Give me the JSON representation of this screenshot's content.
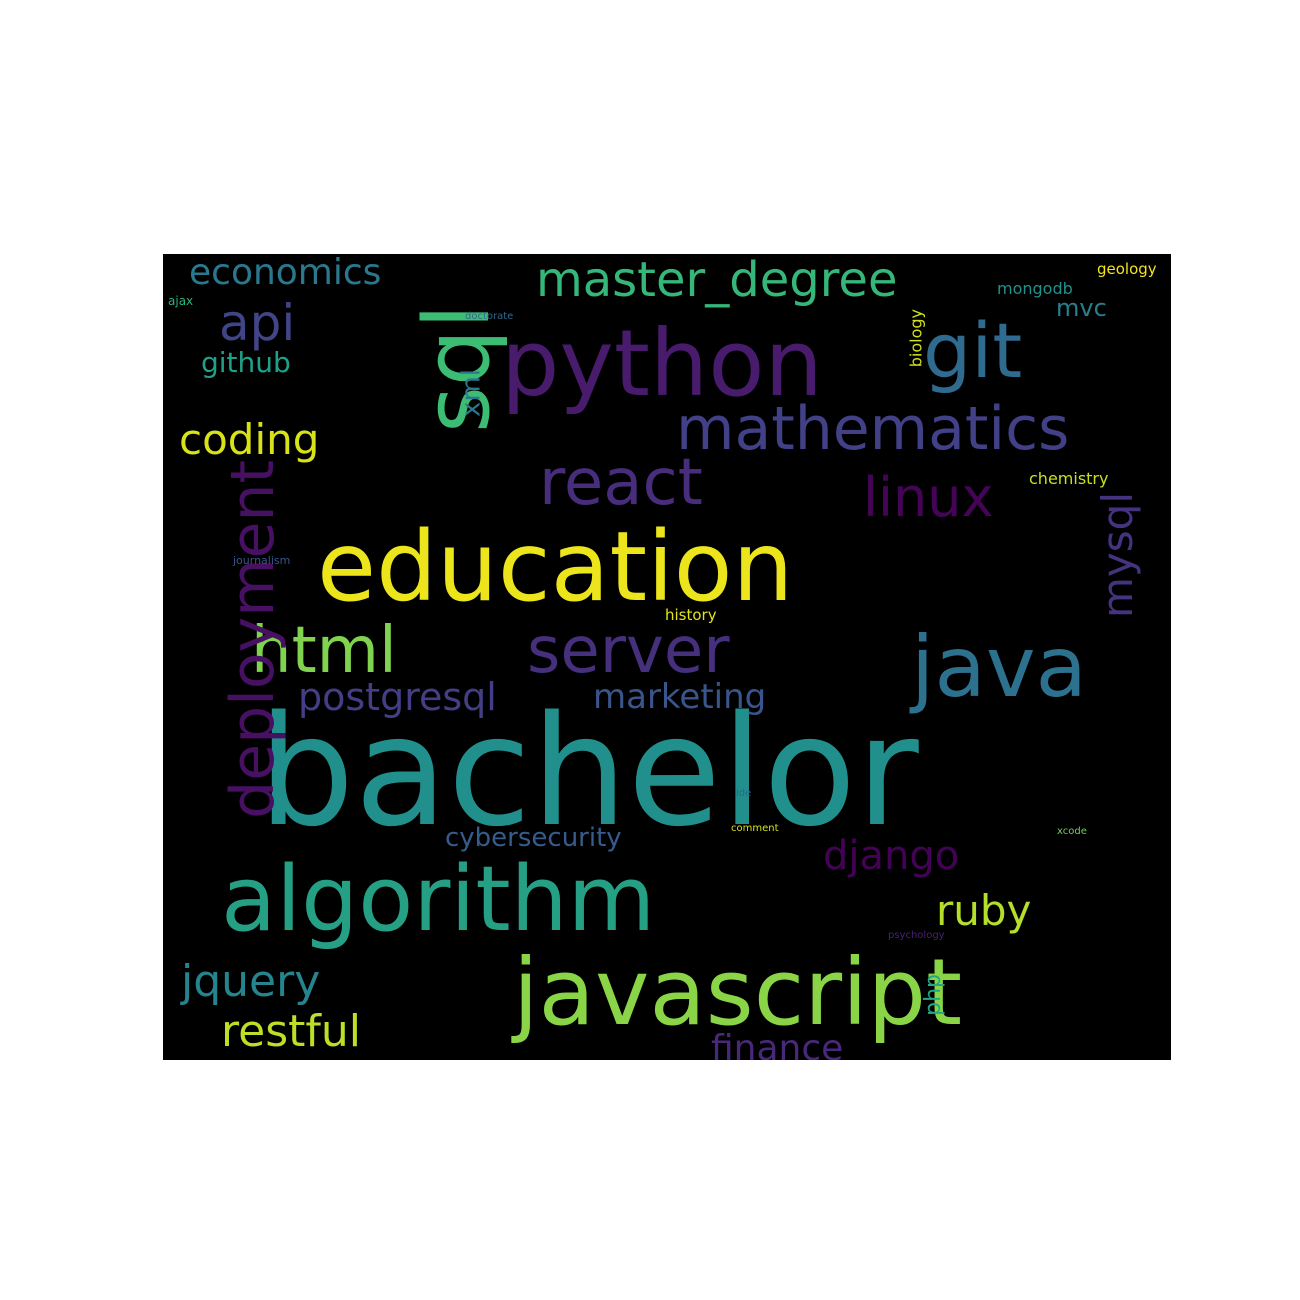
{
  "words": [
    {
      "text": "bachelor",
      "color": "#21908d"
    },
    {
      "text": "education",
      "color": "#ece51b"
    },
    {
      "text": "python",
      "color": "#481b6d"
    },
    {
      "text": "javascript",
      "color": "#8ad547"
    },
    {
      "text": "algorithm",
      "color": "#25a085"
    },
    {
      "text": "sql",
      "color": "#3dbc74"
    },
    {
      "text": "java",
      "color": "#2c718e"
    },
    {
      "text": "git",
      "color": "#2f6b8e"
    },
    {
      "text": "mathematics",
      "color": "#424086"
    },
    {
      "text": "react",
      "color": "#472d7b"
    },
    {
      "text": "server",
      "color": "#46307e"
    },
    {
      "text": "html",
      "color": "#7fd34e"
    },
    {
      "text": "deployment",
      "color": "#471063"
    },
    {
      "text": "master_degree",
      "color": "#35b779"
    },
    {
      "text": "coding",
      "color": "#d8e219"
    },
    {
      "text": "linux",
      "color": "#450457"
    },
    {
      "text": "postgresql",
      "color": "#433e85"
    },
    {
      "text": "marketing",
      "color": "#3a548c"
    },
    {
      "text": "mysql",
      "color": "#46337f"
    },
    {
      "text": "api",
      "color": "#414487"
    },
    {
      "text": "economics",
      "color": "#2a788e"
    },
    {
      "text": "django",
      "color": "#440256"
    },
    {
      "text": "ruby",
      "color": "#b5de2b"
    },
    {
      "text": "jquery",
      "color": "#25848e"
    },
    {
      "text": "restful",
      "color": "#bddf26"
    },
    {
      "text": "cybersecurity",
      "color": "#365c8d"
    },
    {
      "text": "finance",
      "color": "#482878"
    },
    {
      "text": "github",
      "color": "#1fa187"
    },
    {
      "text": "xml",
      "color": "#2a788e"
    },
    {
      "text": "mvc",
      "color": "#277f8e"
    },
    {
      "text": "mongodb",
      "color": "#21918c"
    },
    {
      "text": "chemistry",
      "color": "#c8e020"
    },
    {
      "text": "biology",
      "color": "#d2e21b"
    },
    {
      "text": "geology",
      "color": "#f1e51d"
    },
    {
      "text": "php",
      "color": "#22a884"
    },
    {
      "text": "history",
      "color": "#e2e418"
    },
    {
      "text": "journalism",
      "color": "#39568c"
    },
    {
      "text": "doctorate",
      "color": "#31688e"
    },
    {
      "text": "ajax",
      "color": "#2db27d"
    },
    {
      "text": "ide",
      "color": "#33638d"
    },
    {
      "text": "comment",
      "color": "#d5e21a"
    },
    {
      "text": "xcode",
      "color": "#6ece58"
    },
    {
      "text": "psychology",
      "color": "#482173"
    }
  ]
}
